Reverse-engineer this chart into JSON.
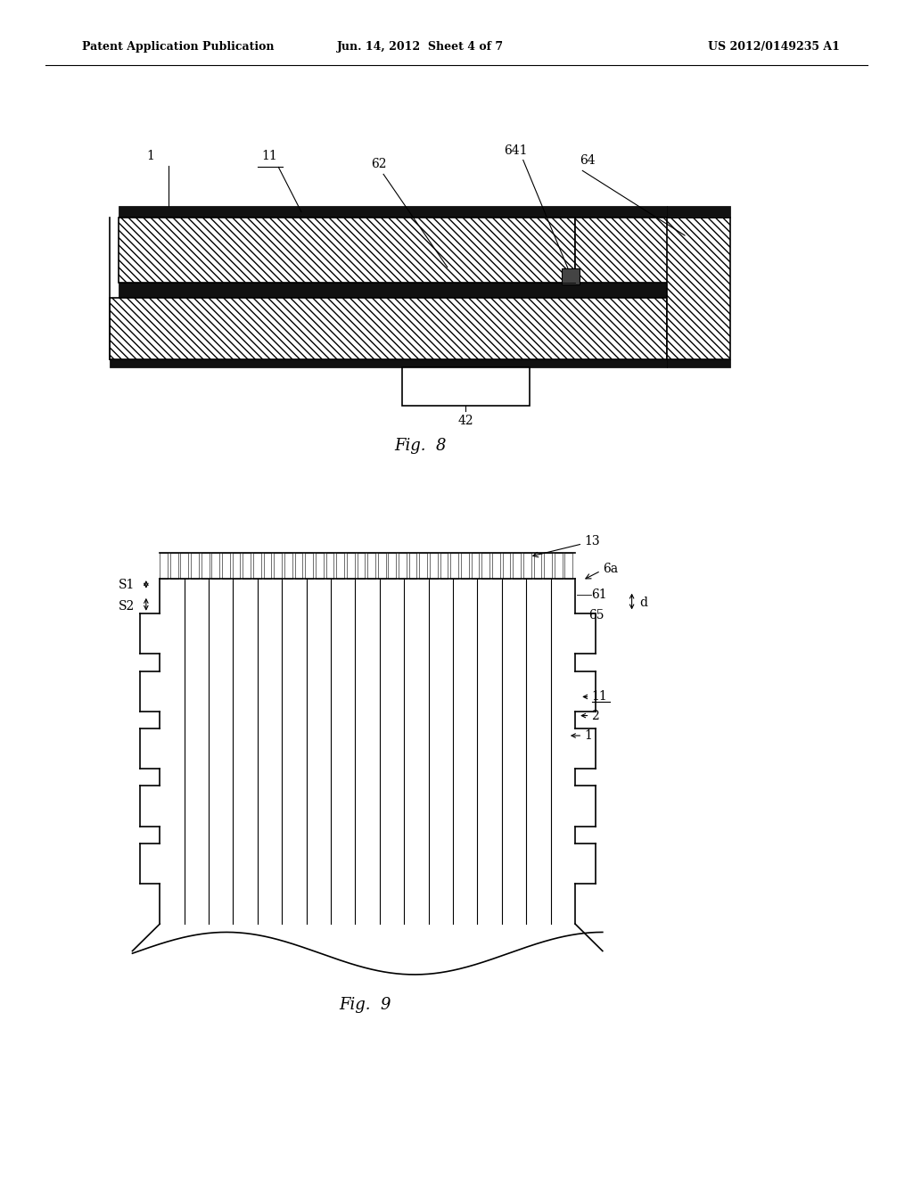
{
  "background_color": "#ffffff",
  "header_left": "Patent Application Publication",
  "header_center": "Jun. 14, 2012  Sheet 4 of 7",
  "header_right": "US 2012/0149235 A1",
  "fig8_label": "Fig.  8",
  "fig9_label": "Fig.  9",
  "line_color": "#000000"
}
